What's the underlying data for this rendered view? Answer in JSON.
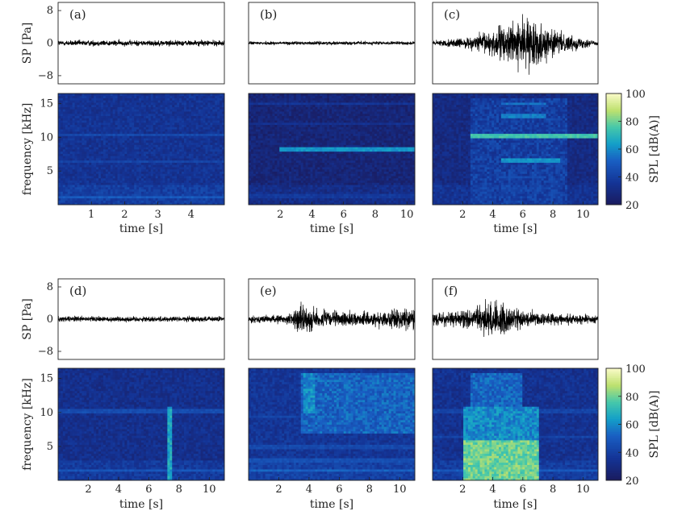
{
  "colors": {
    "axis": "#222222",
    "wave": "#000000"
  },
  "labels": {
    "sp_axis": "SP [Pa]",
    "freq_axis": "frequency [kHz]",
    "time_axis": "time [s]",
    "colorbar_axis": "SPL [dB(A)]"
  },
  "chart_data": [
    {
      "panel": "(a)",
      "type": "line",
      "ylabel": "SP [Pa]",
      "ylim": [
        -10,
        10
      ],
      "yticks": [
        8,
        0,
        -8
      ],
      "xlim": [
        0,
        5
      ],
      "amplitude_profile": [
        {
          "t": 0,
          "a": 1.0
        },
        {
          "t": 5,
          "a": 1.0
        }
      ],
      "events": []
    },
    {
      "panel": "(b)",
      "type": "line",
      "ylim": [
        -10,
        10
      ],
      "xlim": [
        0,
        10.5
      ],
      "amplitude_profile": [
        {
          "t": 0,
          "a": 0.6
        },
        {
          "t": 10.5,
          "a": 0.6
        }
      ],
      "events": []
    },
    {
      "panel": "(c)",
      "type": "line",
      "ylim": [
        -10,
        10
      ],
      "xlim": [
        0,
        11
      ],
      "amplitude_profile": [
        {
          "t": 0,
          "a": 0.8
        },
        {
          "t": 2.5,
          "a": 2.0
        },
        {
          "t": 5,
          "a": 7.0
        },
        {
          "t": 6.5,
          "a": 8.5
        },
        {
          "t": 8.5,
          "a": 3.5
        },
        {
          "t": 11,
          "a": 0.8
        }
      ],
      "events": []
    },
    {
      "panel": "(d)",
      "type": "line",
      "ylabel": "SP [Pa]",
      "ylim": [
        -10,
        10
      ],
      "yticks": [
        8,
        0,
        -8
      ],
      "xlim": [
        0,
        11
      ],
      "amplitude_profile": [
        {
          "t": 0,
          "a": 1.0
        },
        {
          "t": 11,
          "a": 1.0
        }
      ],
      "events": []
    },
    {
      "panel": "(e)",
      "type": "line",
      "ylim": [
        -10,
        10
      ],
      "xlim": [
        0,
        11
      ],
      "amplitude_profile": [
        {
          "t": 0,
          "a": 1.2
        },
        {
          "t": 2.5,
          "a": 1.5
        },
        {
          "t": 3.5,
          "a": 5.0
        },
        {
          "t": 4.5,
          "a": 3.5
        },
        {
          "t": 6,
          "a": 2.5
        },
        {
          "t": 8,
          "a": 2.5
        },
        {
          "t": 11,
          "a": 4.0
        }
      ],
      "events": []
    },
    {
      "panel": "(f)",
      "type": "line",
      "ylim": [
        -10,
        10
      ],
      "xlim": [
        0,
        11
      ],
      "amplitude_profile": [
        {
          "t": 0,
          "a": 2.0
        },
        {
          "t": 2,
          "a": 3.0
        },
        {
          "t": 3.5,
          "a": 5.5
        },
        {
          "t": 4.5,
          "a": 6.5
        },
        {
          "t": 6,
          "a": 3.0
        },
        {
          "t": 8,
          "a": 2.0
        },
        {
          "t": 11,
          "a": 1.5
        }
      ],
      "events": []
    },
    {
      "panel": "(a)",
      "type": "heatmap",
      "xlabel": "time [s]",
      "ylabel": "frequency [kHz]",
      "xlim": [
        0,
        5
      ],
      "ylim": [
        0,
        16.5
      ],
      "xticks": [
        1,
        2,
        3,
        4
      ],
      "yticks": [
        5,
        10,
        15
      ],
      "colorbar": null,
      "base_db": 35,
      "lines": [
        {
          "f": 1.2,
          "t0": 0,
          "t1": 5,
          "db": 50
        },
        {
          "f": 6.5,
          "t0": 0,
          "t1": 5,
          "db": 42
        },
        {
          "f": 10.3,
          "t0": 0,
          "t1": 5,
          "db": 44
        }
      ],
      "events": [
        {
          "t0": 0,
          "t1": 0.65,
          "f0": 0,
          "f1": 16,
          "db": 30
        }
      ]
    },
    {
      "panel": "(b)",
      "type": "heatmap",
      "xlabel": "time [s]",
      "xlim": [
        0,
        10.5
      ],
      "ylim": [
        0,
        16.5
      ],
      "xticks": [
        2,
        4,
        6,
        8,
        10
      ],
      "yticks": [],
      "colorbar": null,
      "base_db": 27,
      "lines": [
        {
          "f": 8.3,
          "t0": 2.0,
          "t1": 10.5,
          "db": 62
        },
        {
          "f": 12,
          "t0": 0,
          "t1": 10.5,
          "db": 34
        },
        {
          "f": 15,
          "t0": 0,
          "t1": 10.5,
          "db": 36
        },
        {
          "f": 1.3,
          "t0": 0,
          "t1": 10.5,
          "db": 38
        }
      ],
      "events": []
    },
    {
      "panel": "(c)",
      "type": "heatmap",
      "xlabel": "time [s]",
      "xlim": [
        0,
        11
      ],
      "ylim": [
        0,
        16.5
      ],
      "xticks": [
        2,
        4,
        6,
        8,
        10
      ],
      "yticks": [],
      "colorbar": {
        "label": "SPL [dB(A)]",
        "min": 20,
        "max": 100,
        "ticks": [
          20,
          40,
          60,
          80,
          100
        ]
      },
      "base_db": 30,
      "lines": [
        {
          "f": 10.2,
          "t0": 2.5,
          "t1": 11,
          "db": 75
        },
        {
          "f": 6.6,
          "t0": 4.5,
          "t1": 8.5,
          "db": 62
        },
        {
          "f": 13.2,
          "t0": 4.5,
          "t1": 7.5,
          "db": 58
        },
        {
          "f": 15.0,
          "t0": 4.5,
          "t1": 7.5,
          "db": 55
        },
        {
          "f": 4.2,
          "t0": 4.5,
          "t1": 7.5,
          "db": 45
        },
        {
          "f": 2.5,
          "t0": 4.5,
          "t1": 7.5,
          "db": 42
        }
      ],
      "events": [
        {
          "t0": 2.5,
          "t1": 9,
          "f0": 0,
          "f1": 16,
          "db": 40
        }
      ]
    },
    {
      "panel": "(d)",
      "type": "heatmap",
      "xlabel": "time [s]",
      "ylabel": "frequency [kHz]",
      "xlim": [
        0,
        11
      ],
      "ylim": [
        0,
        16.5
      ],
      "xticks": [
        2,
        4,
        6,
        8,
        10
      ],
      "yticks": [
        5,
        10,
        15
      ],
      "colorbar": null,
      "base_db": 33,
      "lines": [
        {
          "f": 10.2,
          "t0": 0,
          "t1": 11,
          "db": 45
        },
        {
          "f": 1.5,
          "t0": 0,
          "t1": 11,
          "db": 48
        }
      ],
      "events": [
        {
          "t0": 7.3,
          "t1": 7.6,
          "f0": 0,
          "f1": 11,
          "db": 65
        }
      ]
    },
    {
      "panel": "(e)",
      "type": "heatmap",
      "xlabel": "time [s]",
      "xlim": [
        0,
        11
      ],
      "ylim": [
        0,
        16.5
      ],
      "xticks": [
        2,
        4,
        6,
        8,
        10
      ],
      "yticks": [],
      "colorbar": null,
      "base_db": 36,
      "lines": [
        {
          "f": 1.5,
          "t0": 0,
          "t1": 11,
          "db": 52
        },
        {
          "f": 3.0,
          "t0": 0,
          "t1": 11,
          "db": 46
        },
        {
          "f": 5.0,
          "t0": 0,
          "t1": 11,
          "db": 44
        },
        {
          "f": 9.5,
          "t0": 0,
          "t1": 11,
          "db": 42
        }
      ],
      "events": [
        {
          "t0": 3.5,
          "t1": 11,
          "f0": 7,
          "f1": 16,
          "db": 52
        },
        {
          "t0": 3.6,
          "t1": 4.4,
          "f0": 10,
          "f1": 16,
          "db": 60
        }
      ]
    },
    {
      "panel": "(f)",
      "type": "heatmap",
      "xlabel": "time [s]",
      "xlim": [
        0,
        11
      ],
      "ylim": [
        0,
        16.5
      ],
      "xticks": [
        2,
        4,
        6,
        8,
        10
      ],
      "yticks": [],
      "colorbar": {
        "label": "SPL [dB(A)]",
        "min": 20,
        "max": 100,
        "ticks": [
          20,
          40,
          60,
          80,
          100
        ]
      },
      "base_db": 34,
      "lines": [
        {
          "f": 1.5,
          "t0": 0,
          "t1": 11,
          "db": 50
        },
        {
          "f": 6.5,
          "t0": 0,
          "t1": 11,
          "db": 42
        },
        {
          "f": 10.2,
          "t0": 0,
          "t1": 11,
          "db": 42
        }
      ],
      "events": [
        {
          "t0": 2,
          "t1": 7,
          "f0": 0,
          "f1": 6,
          "db": 80
        },
        {
          "t0": 2,
          "t1": 7,
          "f0": 6,
          "f1": 11,
          "db": 60
        },
        {
          "t0": 2.5,
          "t1": 6,
          "f0": 11,
          "f1": 16,
          "db": 52
        }
      ]
    }
  ]
}
